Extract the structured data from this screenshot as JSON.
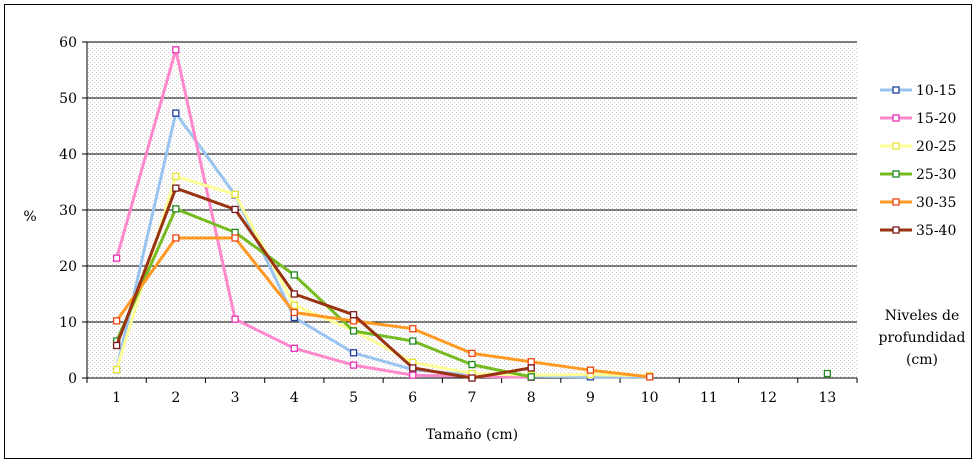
{
  "chart_data": {
    "type": "line",
    "xlabel": "Tamaño (cm)",
    "ylabel": "%",
    "x": [
      1,
      2,
      3,
      4,
      5,
      6,
      7,
      8,
      9,
      10,
      11,
      12,
      13
    ],
    "xlim": [
      0.5,
      13.5
    ],
    "ylim": [
      0,
      60
    ],
    "yticks": [
      0,
      10,
      20,
      30,
      40,
      50,
      60
    ],
    "grid": true,
    "legend_position": "right",
    "legend_title": "Niveles de profundidad (cm)",
    "series": [
      {
        "name": "10-15",
        "color": "#99c4f0",
        "marker_edge": "#1f3f9f",
        "points": [
          [
            1,
            1.5
          ],
          [
            2,
            47.3
          ],
          [
            3,
            32.7
          ],
          [
            4,
            10.8
          ],
          [
            5,
            4.5
          ],
          [
            6,
            1.5
          ],
          [
            7,
            0.5
          ],
          [
            8,
            0.3
          ],
          [
            9,
            0.2
          ],
          [
            10,
            0.2
          ]
        ]
      },
      {
        "name": "15-20",
        "color": "#ff88cc",
        "marker_edge": "#e633b3",
        "points": [
          [
            1,
            21.4
          ],
          [
            2,
            58.6
          ],
          [
            3,
            10.5
          ],
          [
            4,
            5.3
          ],
          [
            5,
            2.3
          ],
          [
            6,
            0.5
          ],
          [
            7,
            0.3
          ],
          [
            8,
            0.1
          ]
        ]
      },
      {
        "name": "20-25",
        "color": "#ffff99",
        "marker_edge": "#e6e633",
        "points": [
          [
            1,
            1.5
          ],
          [
            2,
            36
          ],
          [
            3,
            32.8
          ],
          [
            4,
            13
          ],
          [
            5,
            8.5
          ],
          [
            6,
            2.8
          ],
          [
            7,
            0.8
          ],
          [
            8,
            0.5
          ],
          [
            9,
            0.6
          ],
          [
            10,
            0.4
          ]
        ]
      },
      {
        "name": "25-30",
        "color": "#77bb22",
        "marker_edge": "#228822",
        "points": [
          [
            1,
            6.6
          ],
          [
            2,
            30.2
          ],
          [
            3,
            26
          ],
          [
            4,
            18.4
          ],
          [
            5,
            8.4
          ],
          [
            6,
            6.6
          ],
          [
            7,
            2.4
          ],
          [
            8,
            0.2
          ],
          [
            13,
            0.8
          ]
        ]
      },
      {
        "name": "30-35",
        "color": "#ff9922",
        "marker_edge": "#ee4411",
        "points": [
          [
            1,
            10.2
          ],
          [
            2,
            25
          ],
          [
            3,
            25
          ],
          [
            4,
            11.7
          ],
          [
            5,
            10.2
          ],
          [
            6,
            8.8
          ],
          [
            7,
            4.4
          ],
          [
            8,
            2.9
          ],
          [
            9,
            1.4
          ],
          [
            10,
            0.2
          ]
        ]
      },
      {
        "name": "35-40",
        "color": "#993311",
        "marker_edge": "#7a1a1a",
        "points": [
          [
            1,
            5.8
          ],
          [
            2,
            33.9
          ],
          [
            3,
            30.1
          ],
          [
            4,
            15
          ],
          [
            5,
            11.3
          ],
          [
            6,
            1.8
          ],
          [
            7,
            0
          ],
          [
            8,
            1.8
          ]
        ]
      }
    ]
  }
}
